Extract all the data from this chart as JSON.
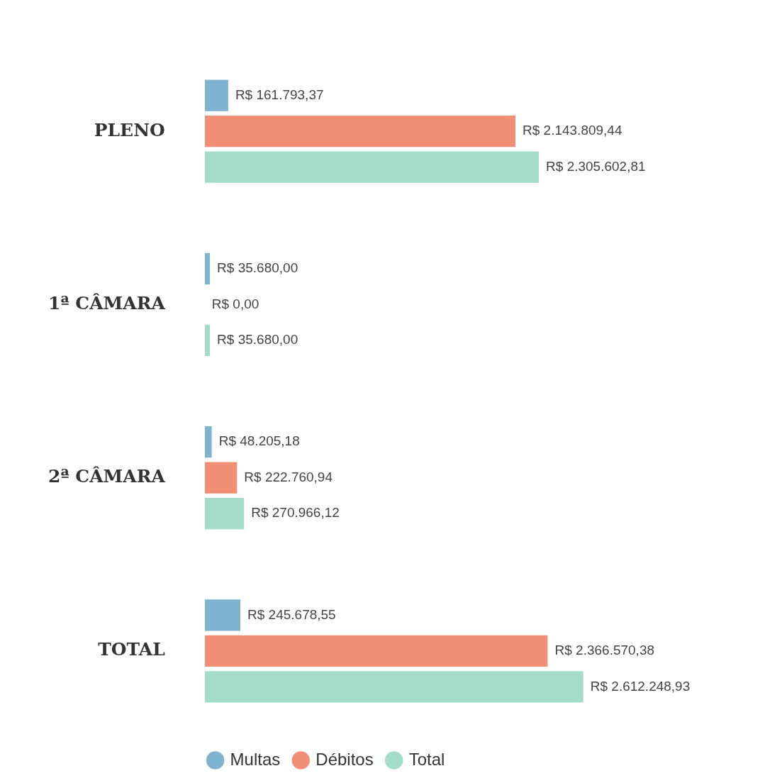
{
  "chart_data": {
    "type": "bar",
    "orientation": "horizontal",
    "categories": [
      "PLENO",
      "1ª CÂMARA",
      "2ª CÂMARA",
      "TOTAL"
    ],
    "legend": "bottom",
    "tick_labels": "y",
    "series": [
      {
        "name": "Multas",
        "color": "#7fb3cf",
        "values": [
          161793.37,
          35680.0,
          48205.18,
          245678.55
        ],
        "value_labels": [
          "R$ 161.793,37",
          "R$ 35.680,00",
          "R$ 48.205,18",
          "R$ 245.678,55"
        ]
      },
      {
        "name": "Débitos",
        "color": "#f08f73",
        "values": [
          2143809.44,
          0,
          222760.94,
          2366570.38
        ],
        "value_labels": [
          "R$ 2.143.809,44",
          "R$ 0,00",
          "R$ 222.760,94",
          "R$ 2.366.570,38"
        ]
      },
      {
        "name": "Total",
        "color": "#a3dcc8",
        "values": [
          2305602.81,
          35680.0,
          270966.12,
          2612248.93
        ],
        "value_labels": [
          "R$ 2.305.602,81",
          "R$ 35.680,00",
          "R$ 270.966,12",
          "R$ 2.612.248,93"
        ]
      }
    ]
  }
}
